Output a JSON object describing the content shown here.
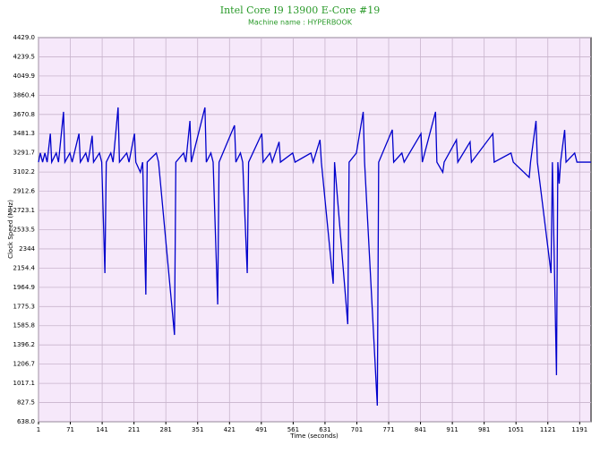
{
  "chart_data": {
    "type": "line",
    "title": "Intel Core I9 13900 E-Core #19",
    "subtitle": "Machine name : HYPERBOOK",
    "x_label": "Time (seconds)",
    "y_label": "Clock Speed (MHz)",
    "color": "#0000cc",
    "grid": true,
    "xlim": [
      1,
      1216
    ],
    "ylim": [
      638,
      4429
    ],
    "xticks": [
      1,
      71,
      141,
      211,
      281,
      351,
      421,
      491,
      561,
      631,
      701,
      771,
      841,
      911,
      981,
      1051,
      1121,
      1191
    ],
    "yticks": [
      {
        "value": 638,
        "label": "638.0"
      },
      827.5,
      1017.1,
      1206.7,
      1396.2,
      1585.8,
      1775.3,
      1964.9,
      2154.4,
      2344.0,
      2533.5,
      2723.1,
      2912.6,
      3102.2,
      3291.7,
      3481.3,
      3670.8,
      3860.4,
      4049.9,
      4239.5,
      {
        "value": 4429,
        "label": "4429.0"
      }
    ],
    "x": [
      1,
      5,
      10,
      15,
      20,
      27,
      30,
      40,
      45,
      56,
      59,
      70,
      75,
      90,
      93,
      105,
      110,
      119,
      122,
      135,
      140,
      147,
      150,
      160,
      165,
      176,
      179,
      195,
      200,
      212,
      215,
      225,
      230,
      237,
      240,
      260,
      265,
      300,
      303,
      320,
      325,
      334,
      337,
      367,
      370,
      380,
      385,
      395,
      398,
      432,
      435,
      445,
      450,
      460,
      463,
      492,
      495,
      510,
      515,
      530,
      533,
      560,
      565,
      600,
      605,
      620,
      623,
      649,
      652,
      681,
      684,
      700,
      715,
      718,
      746,
      749,
      779,
      782,
      800,
      805,
      842,
      845,
      874,
      877,
      890,
      893,
      920,
      923,
      950,
      953,
      1000,
      1003,
      1040,
      1045,
      1080,
      1083,
      1095,
      1098,
      1128,
      1131,
      1140,
      1143,
      1146,
      1149,
      1158,
      1161,
      1180,
      1185,
      1216
    ],
    "values": [
      3200,
      3290,
      3200,
      3290,
      3200,
      3481,
      3200,
      3290,
      3200,
      3696,
      3200,
      3290,
      3200,
      3481,
      3200,
      3290,
      3200,
      3460,
      3200,
      3290,
      3200,
      2105,
      3200,
      3290,
      3200,
      3740,
      3200,
      3290,
      3200,
      3481,
      3200,
      3100,
      3200,
      1893,
      3200,
      3290,
      3200,
      1495,
      3200,
      3290,
      3200,
      3607,
      3200,
      3740,
      3200,
      3290,
      3200,
      1796,
      3200,
      3563,
      3200,
      3290,
      3200,
      2105,
      3200,
      3481,
      3200,
      3290,
      3200,
      3400,
      3200,
      3290,
      3200,
      3290,
      3200,
      3420,
      3200,
      2000,
      3200,
      1601,
      3200,
      3290,
      3696,
      3200,
      797,
      3200,
      3520,
      3200,
      3290,
      3200,
      3481,
      3200,
      3696,
      3200,
      3100,
      3200,
      3420,
      3200,
      3400,
      3200,
      3481,
      3200,
      3290,
      3200,
      3050,
      3200,
      3607,
      3200,
      2105,
      3200,
      1098,
      3200,
      2988,
      3200,
      3518,
      3200,
      3290,
      3200,
      3200
    ]
  }
}
